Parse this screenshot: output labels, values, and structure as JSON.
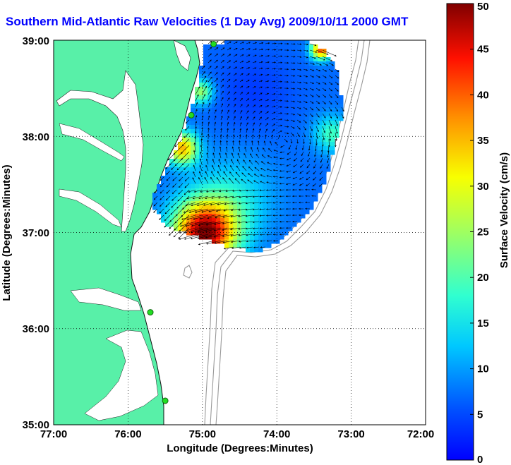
{
  "title": "Southern Mid-Atlantic Raw Velocities (1 Day Avg) 2009/10/11 2000 GMT",
  "chart_data": {
    "type": "map",
    "xlabel": "Longitude (Degrees:Minutes)",
    "ylabel": "Latitude (Degrees:Minutes)",
    "x_ticks": [
      "77:00",
      "76:00",
      "75:00",
      "74:00",
      "73:00",
      "72:00"
    ],
    "y_ticks": [
      "39:00",
      "38:00",
      "37:00",
      "36:00",
      "35:00"
    ],
    "xlim": [
      -77,
      -72
    ],
    "ylim": [
      35,
      39
    ],
    "grid": "dotted",
    "colorbar": {
      "label": "Surface Velocity (cm/s)",
      "min": 0,
      "max": 50,
      "ticks": [
        "0",
        "5",
        "10",
        "15",
        "20",
        "25",
        "30",
        "35",
        "40",
        "45",
        "50"
      ],
      "colormap": "jet"
    },
    "colors": {
      "land": "#58f0a8",
      "water": "#ffffff",
      "title": "#0000ff",
      "bathymetry": "#999999"
    },
    "stations": [
      {
        "lon": -74.85,
        "lat": 38.96
      },
      {
        "lon": -75.15,
        "lat": 38.22
      },
      {
        "lon": -75.7,
        "lat": 36.17
      },
      {
        "lon": -75.5,
        "lat": 35.25
      }
    ]
  }
}
